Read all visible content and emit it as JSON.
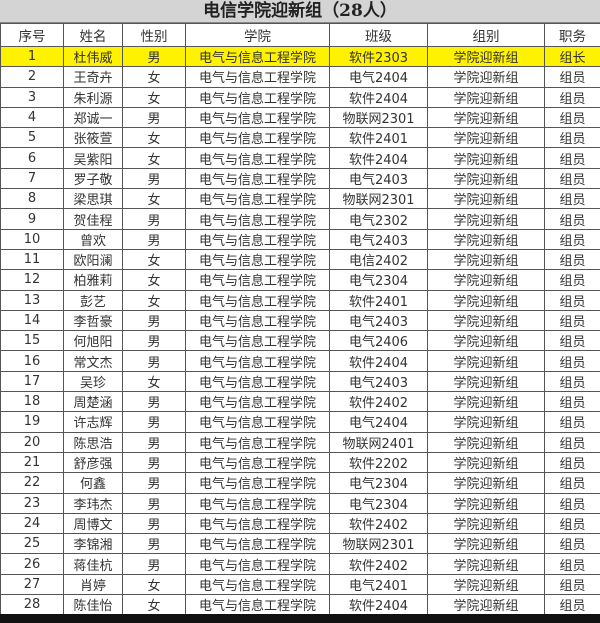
{
  "title": "电信学院迎新组（28人）",
  "colors": {
    "header_bg": "#d4d4d4",
    "leader_highlight": "#fff200"
  },
  "columns": [
    "序号",
    "姓名",
    "性别",
    "学院",
    "班级",
    "组别",
    "职务"
  ],
  "rows": [
    [
      "1",
      "杜伟威",
      "男",
      "电气与信息工程学院",
      "软件2303",
      "学院迎新组",
      "组长"
    ],
    [
      "2",
      "王奇卉",
      "女",
      "电气与信息工程学院",
      "电气2404",
      "学院迎新组",
      "组员"
    ],
    [
      "3",
      "朱利源",
      "女",
      "电气与信息工程学院",
      "软件2404",
      "学院迎新组",
      "组员"
    ],
    [
      "4",
      "郑诚一",
      "男",
      "电气与信息工程学院",
      "物联网2301",
      "学院迎新组",
      "组员"
    ],
    [
      "5",
      "张筱萱",
      "女",
      "电气与信息工程学院",
      "软件2401",
      "学院迎新组",
      "组员"
    ],
    [
      "6",
      "吴紫阳",
      "女",
      "电气与信息工程学院",
      "软件2404",
      "学院迎新组",
      "组员"
    ],
    [
      "7",
      "罗子敬",
      "男",
      "电气与信息工程学院",
      "电气2403",
      "学院迎新组",
      "组员"
    ],
    [
      "8",
      "梁思琪",
      "女",
      "电气与信息工程学院",
      "物联网2301",
      "学院迎新组",
      "组员"
    ],
    [
      "9",
      "贺佳程",
      "男",
      "电气与信息工程学院",
      "电气2302",
      "学院迎新组",
      "组员"
    ],
    [
      "10",
      "曾欢",
      "男",
      "电气与信息工程学院",
      "电气2403",
      "学院迎新组",
      "组员"
    ],
    [
      "11",
      "欧阳澜",
      "女",
      "电气与信息工程学院",
      "电信2402",
      "学院迎新组",
      "组员"
    ],
    [
      "12",
      "柏雅莉",
      "女",
      "电气与信息工程学院",
      "电气2304",
      "学院迎新组",
      "组员"
    ],
    [
      "13",
      "彭艺",
      "女",
      "电气与信息工程学院",
      "软件2401",
      "学院迎新组",
      "组员"
    ],
    [
      "14",
      "李哲豪",
      "男",
      "电气与信息工程学院",
      "电气2403",
      "学院迎新组",
      "组员"
    ],
    [
      "15",
      "何旭阳",
      "男",
      "电气与信息工程学院",
      "电气2406",
      "学院迎新组",
      "组员"
    ],
    [
      "16",
      "常文杰",
      "男",
      "电气与信息工程学院",
      "软件2404",
      "学院迎新组",
      "组员"
    ],
    [
      "17",
      "吴珍",
      "女",
      "电气与信息工程学院",
      "电气2403",
      "学院迎新组",
      "组员"
    ],
    [
      "18",
      "周楚涵",
      "男",
      "电气与信息工程学院",
      "软件2402",
      "学院迎新组",
      "组员"
    ],
    [
      "19",
      "许志辉",
      "男",
      "电气与信息工程学院",
      "电气2404",
      "学院迎新组",
      "组员"
    ],
    [
      "20",
      "陈思浩",
      "男",
      "电气与信息工程学院",
      "物联网2401",
      "学院迎新组",
      "组员"
    ],
    [
      "21",
      "舒彦强",
      "男",
      "电气与信息工程学院",
      "软件2202",
      "学院迎新组",
      "组员"
    ],
    [
      "22",
      "何鑫",
      "男",
      "电气与信息工程学院",
      "电气2304",
      "学院迎新组",
      "组员"
    ],
    [
      "23",
      "李玮杰",
      "男",
      "电气与信息工程学院",
      "电气2304",
      "学院迎新组",
      "组员"
    ],
    [
      "24",
      "周博文",
      "男",
      "电气与信息工程学院",
      "软件2402",
      "学院迎新组",
      "组员"
    ],
    [
      "25",
      "李锦湘",
      "男",
      "电气与信息工程学院",
      "物联网2301",
      "学院迎新组",
      "组员"
    ],
    [
      "26",
      "蒋佳杭",
      "男",
      "电气与信息工程学院",
      "软件2402",
      "学院迎新组",
      "组员"
    ],
    [
      "27",
      "肖婷",
      "女",
      "电气与信息工程学院",
      "电气2401",
      "学院迎新组",
      "组员"
    ],
    [
      "28",
      "陈佳怡",
      "女",
      "电气与信息工程学院",
      "软件2404",
      "学院迎新组",
      "组员"
    ]
  ]
}
